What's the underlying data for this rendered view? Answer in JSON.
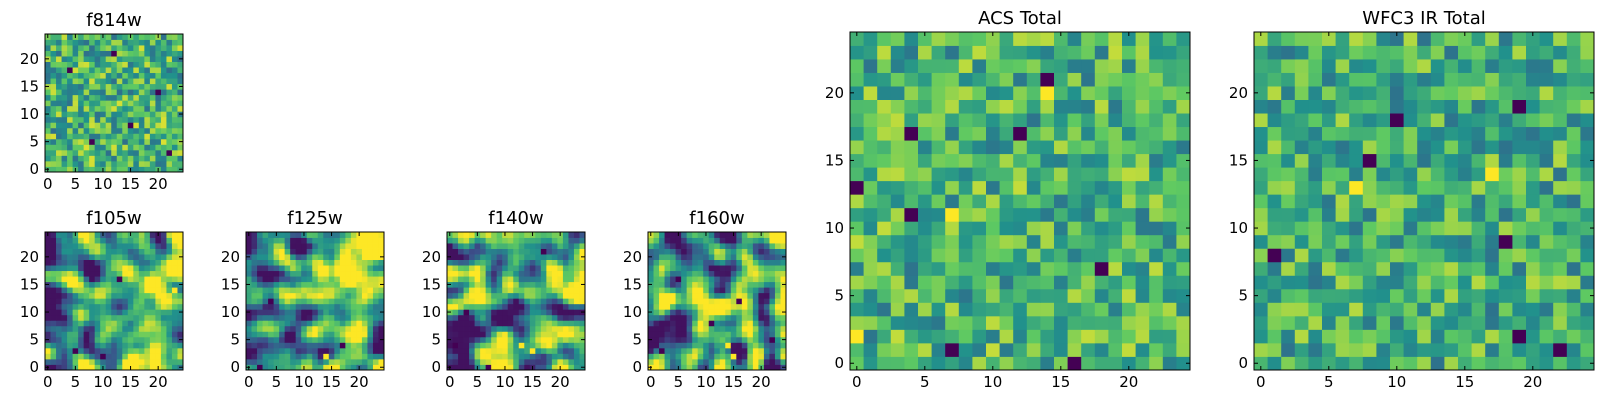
{
  "figure": {
    "background": "#ffffff",
    "colormap": "viridis",
    "colormap_stops": [
      "#440154",
      "#3b528b",
      "#21918c",
      "#5ec962",
      "#fde725"
    ]
  },
  "chart_data": [
    {
      "type": "heatmap",
      "title": "f814w",
      "grid_size": [
        25,
        25
      ],
      "x_ticks": [
        0,
        5,
        10,
        15,
        20
      ],
      "y_ticks": [
        0,
        5,
        10,
        15,
        20
      ],
      "xlim": [
        0,
        24
      ],
      "ylim": [
        0,
        24
      ],
      "colormap": "viridis",
      "texture": "uncorrelated noise",
      "seed": 11,
      "smooth_passes": 0,
      "mean_level": 0.64,
      "spread": 0.5,
      "dark_spots": [
        [
          20,
          14
        ],
        [
          8,
          5
        ],
        [
          15,
          8
        ],
        [
          4,
          18
        ],
        [
          12,
          21
        ],
        [
          22,
          3
        ]
      ],
      "bright_spots": []
    },
    {
      "type": "heatmap",
      "title": "f105w",
      "grid_size": [
        25,
        25
      ],
      "x_ticks": [
        0,
        5,
        10,
        15,
        20
      ],
      "y_ticks": [
        0,
        5,
        10,
        15,
        20
      ],
      "xlim": [
        0,
        24
      ],
      "ylim": [
        0,
        24
      ],
      "colormap": "viridis",
      "texture": "smooth correlated noise, brighter toward right edge",
      "seed": 23,
      "smooth_passes": 2,
      "mean_level": 0.58,
      "spread": 0.9,
      "gradient_right": 0.22,
      "dark_spots": [
        [
          5,
          3
        ],
        [
          10,
          2
        ],
        [
          13,
          16
        ]
      ],
      "bright_spots": [
        [
          22,
          18
        ],
        [
          23,
          14
        ]
      ]
    },
    {
      "type": "heatmap",
      "title": "f125w",
      "grid_size": [
        25,
        25
      ],
      "x_ticks": [
        0,
        5,
        10,
        15,
        20
      ],
      "y_ticks": [
        0,
        5,
        10,
        15,
        20
      ],
      "xlim": [
        0,
        24
      ],
      "ylim": [
        0,
        24
      ],
      "colormap": "viridis",
      "texture": "smooth correlated noise, brighter toward right edge",
      "seed": 37,
      "smooth_passes": 2,
      "mean_level": 0.6,
      "spread": 0.9,
      "gradient_right": 0.2,
      "dark_spots": [
        [
          2,
          0
        ],
        [
          4,
          12
        ],
        [
          17,
          4
        ]
      ],
      "bright_spots": [
        [
          22,
          14
        ],
        [
          14,
          2
        ]
      ]
    },
    {
      "type": "heatmap",
      "title": "f140w",
      "grid_size": [
        25,
        25
      ],
      "x_ticks": [
        0,
        5,
        10,
        15,
        20
      ],
      "y_ticks": [
        0,
        5,
        10,
        15,
        20
      ],
      "xlim": [
        0,
        24
      ],
      "ylim": [
        0,
        24
      ],
      "colormap": "viridis",
      "texture": "smooth correlated noise, bright lower-right region",
      "seed": 51,
      "smooth_passes": 2,
      "mean_level": 0.56,
      "spread": 1.0,
      "gradient_right": 0.12,
      "dark_spots": [
        [
          1,
          4
        ],
        [
          3,
          10
        ],
        [
          17,
          21
        ],
        [
          7,
          0
        ]
      ],
      "bright_spots": [
        [
          13,
          4
        ],
        [
          15,
          3
        ]
      ]
    },
    {
      "type": "heatmap",
      "title": "f160w",
      "grid_size": [
        25,
        25
      ],
      "x_ticks": [
        0,
        5,
        10,
        15,
        20
      ],
      "y_ticks": [
        0,
        5,
        10,
        15,
        20
      ],
      "xlim": [
        0,
        24
      ],
      "ylim": [
        0,
        24
      ],
      "colormap": "viridis",
      "texture": "smooth correlated noise, several dark blobs",
      "seed": 67,
      "smooth_passes": 2,
      "mean_level": 0.55,
      "spread": 1.0,
      "gradient_right": 0.1,
      "dark_spots": [
        [
          2,
          3
        ],
        [
          5,
          16
        ],
        [
          16,
          12
        ],
        [
          22,
          5
        ],
        [
          11,
          8
        ]
      ],
      "bright_spots": [
        [
          14,
          4
        ],
        [
          15,
          2
        ]
      ]
    },
    {
      "type": "heatmap",
      "title": "ACS Total",
      "grid_size": [
        25,
        25
      ],
      "x_ticks": [
        0,
        5,
        10,
        15,
        20
      ],
      "y_ticks": [
        0,
        5,
        10,
        15,
        20
      ],
      "xlim": [
        0,
        24
      ],
      "ylim": [
        0,
        24
      ],
      "colormap": "viridis",
      "texture": "uncorrelated noise",
      "seed": 83,
      "smooth_passes": 0,
      "mean_level": 0.66,
      "spread": 0.45,
      "dark_spots": [
        [
          14,
          21
        ],
        [
          4,
          17
        ],
        [
          12,
          17
        ],
        [
          4,
          11
        ],
        [
          18,
          7
        ],
        [
          7,
          1
        ],
        [
          16,
          0
        ],
        [
          0,
          13
        ]
      ],
      "bright_spots": [
        [
          14,
          20
        ],
        [
          0,
          2
        ],
        [
          7,
          11
        ]
      ]
    },
    {
      "type": "heatmap",
      "title": "WFC3 IR Total",
      "grid_size": [
        25,
        25
      ],
      "x_ticks": [
        0,
        5,
        10,
        15,
        20
      ],
      "y_ticks": [
        0,
        5,
        10,
        15,
        20
      ],
      "xlim": [
        0,
        24
      ],
      "ylim": [
        0,
        24
      ],
      "colormap": "viridis",
      "texture": "uncorrelated noise",
      "seed": 97,
      "smooth_passes": 0,
      "mean_level": 0.63,
      "spread": 0.45,
      "dark_spots": [
        [
          19,
          19
        ],
        [
          10,
          18
        ],
        [
          8,
          15
        ],
        [
          18,
          9
        ],
        [
          19,
          2
        ],
        [
          22,
          1
        ],
        [
          1,
          8
        ]
      ],
      "bright_spots": [
        [
          7,
          13
        ],
        [
          17,
          14
        ]
      ]
    }
  ]
}
